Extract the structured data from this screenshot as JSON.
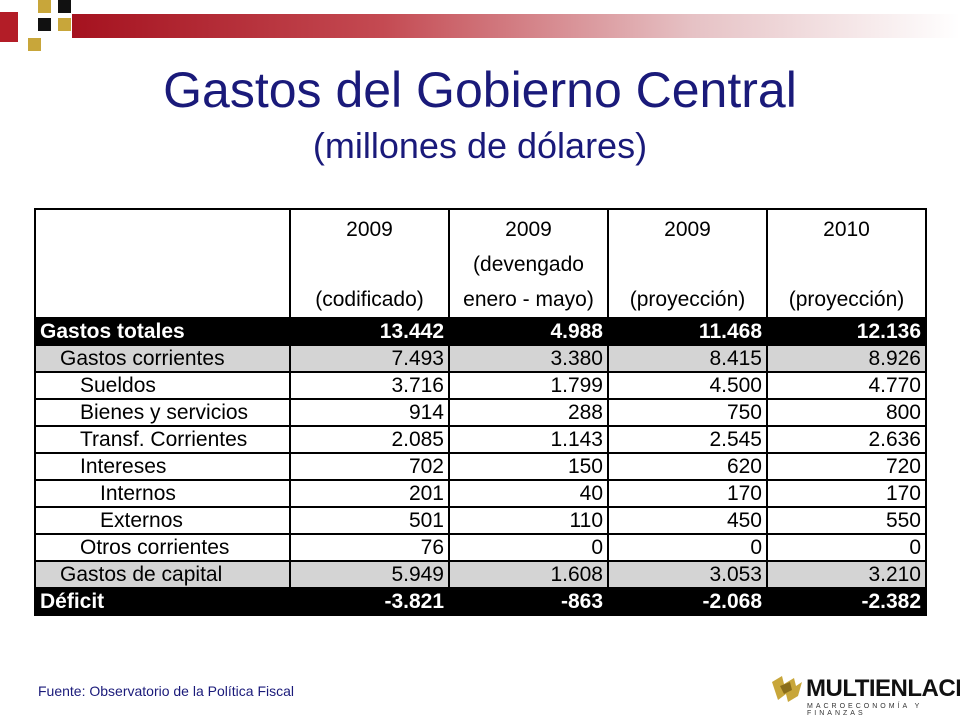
{
  "header": {
    "title": "Gastos del Gobierno Central",
    "subtitle": "(millones de dólares)"
  },
  "table": {
    "columns": [
      {
        "line1": "2009",
        "line2": "",
        "line3": "(codificado)"
      },
      {
        "line1": "2009",
        "line2": "(devengado",
        "line3": "enero - mayo)"
      },
      {
        "line1": "2009",
        "line2": "",
        "line3": "(proyección)"
      },
      {
        "line1": "2010",
        "line2": "",
        "line3": "(proyección)"
      }
    ],
    "rows": [
      {
        "label": "Gastos totales",
        "style": "dark",
        "indent": 0,
        "values": [
          "13.442",
          "4.988",
          "11.468",
          "12.136"
        ]
      },
      {
        "label": "Gastos corrientes",
        "style": "grey",
        "indent": 1,
        "values": [
          "7.493",
          "3.380",
          "8.415",
          "8.926"
        ]
      },
      {
        "label": "Sueldos",
        "style": "plain",
        "indent": 2,
        "values": [
          "3.716",
          "1.799",
          "4.500",
          "4.770"
        ]
      },
      {
        "label": "Bienes y servicios",
        "style": "plain",
        "indent": 2,
        "values": [
          "914",
          "288",
          "750",
          "800"
        ]
      },
      {
        "label": "Transf. Corrientes",
        "style": "plain",
        "indent": 2,
        "values": [
          "2.085",
          "1.143",
          "2.545",
          "2.636"
        ]
      },
      {
        "label": "Intereses",
        "style": "plain",
        "indent": 2,
        "values": [
          "702",
          "150",
          "620",
          "720"
        ]
      },
      {
        "label": "Internos",
        "style": "plain",
        "indent": 3,
        "values": [
          "201",
          "40",
          "170",
          "170"
        ]
      },
      {
        "label": "Externos",
        "style": "plain",
        "indent": 3,
        "values": [
          "501",
          "110",
          "450",
          "550"
        ]
      },
      {
        "label": "Otros corrientes",
        "style": "plain",
        "indent": 2,
        "values": [
          "76",
          "0",
          "0",
          "0"
        ]
      },
      {
        "label": "Gastos de capital",
        "style": "grey",
        "indent": 1,
        "values": [
          "5.949",
          "1.608",
          "3.053",
          "3.210"
        ]
      },
      {
        "label": "Déficit",
        "style": "dark",
        "indent": 0,
        "values": [
          "-3.821",
          "-863",
          "-2.068",
          "-2.382"
        ]
      }
    ]
  },
  "footer": {
    "source": "Fuente: Observatorio de la Política Fiscal",
    "logo_name": "MULTIENLACE",
    "logo_tagline": "MACROECONOMÍA Y FINANZAS"
  },
  "colors": {
    "title": "#1a1a7a",
    "accent_red": "#b31d27",
    "accent_gold": "#c8a63a",
    "row_grey": "#d4d4d4"
  }
}
